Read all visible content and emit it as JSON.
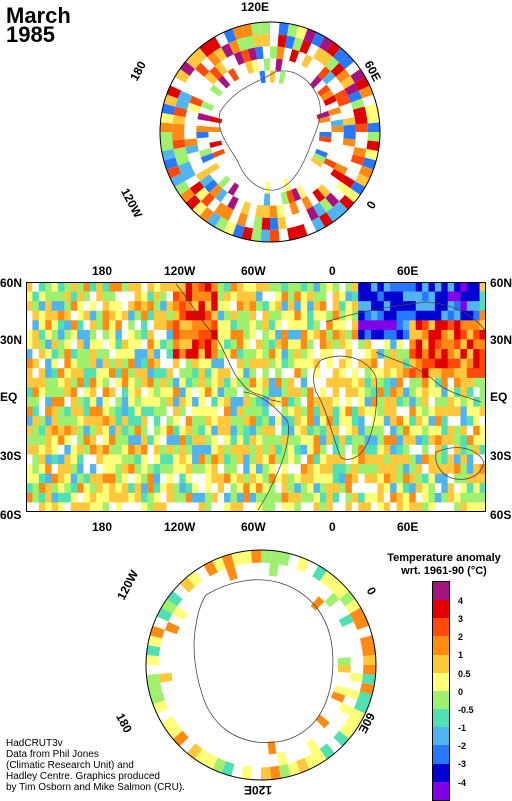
{
  "title": {
    "line1": "March",
    "line2": "1985"
  },
  "north_polar": {
    "labels": {
      "top": "120E",
      "right": "60E",
      "lower_right": "0",
      "left": "180",
      "lower_left": "120W"
    }
  },
  "main_map": {
    "top_lon_labels": [
      "180",
      "120W",
      "60W",
      "0",
      "60E"
    ],
    "bottom_lon_labels": [
      "180",
      "120W",
      "60W",
      "0",
      "60E"
    ],
    "left_lat_labels": [
      "60N",
      "30N",
      "EQ",
      "30S",
      "60S"
    ],
    "right_lat_labels": [
      "60N",
      "30N",
      "EQ",
      "30S",
      "60S"
    ]
  },
  "south_polar": {
    "labels": {
      "upper_left": "120W",
      "upper_right": "0",
      "lower_left": "180",
      "lower_right": "60E",
      "bottom": "120E"
    }
  },
  "legend": {
    "title_line1": "Temperature anomaly",
    "title_line2": "wrt. 1961-90  (°C)",
    "labels": [
      "4",
      "3",
      "2",
      "1",
      "0.5",
      "0",
      "-0.5",
      "-1",
      "-2",
      "-3",
      "-4"
    ],
    "colors": [
      "#a6137e",
      "#e00000",
      "#ff4a0a",
      "#ff8a14",
      "#ffc83c",
      "#ffff78",
      "#9ef06e",
      "#50e0b4",
      "#50b4f0",
      "#2878ff",
      "#0000d2",
      "#8200e6"
    ]
  },
  "credit": {
    "line1": "HadCRUT3v",
    "line2": "Data from Phil Jones",
    "line3": "(Climatic Research Unit) and",
    "line4": "Hadley Centre.  Graphics produced",
    "line5": "by Tim Osborn and Mike Salmon (CRU)."
  }
}
